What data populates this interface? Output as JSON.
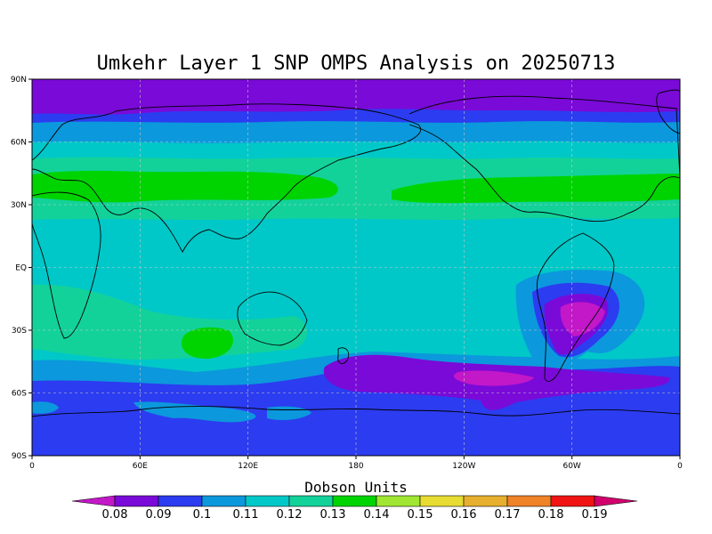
{
  "title": "Umkehr Layer 1 SNP OMPS Analysis on 20250713",
  "lat_axis": {
    "ticks": [
      {
        "label": "90N",
        "lat": 90
      },
      {
        "label": "60N",
        "lat": 60
      },
      {
        "label": "30N",
        "lat": 30
      },
      {
        "label": "EQ",
        "lat": 0
      },
      {
        "label": "30S",
        "lat": -30
      },
      {
        "label": "60S",
        "lat": -60
      },
      {
        "label": "90S",
        "lat": -90
      }
    ]
  },
  "lon_axis": {
    "ticks": [
      {
        "label": "0",
        "lon": 0
      },
      {
        "label": "60E",
        "lon": 60
      },
      {
        "label": "120E",
        "lon": 120
      },
      {
        "label": "180",
        "lon": 180
      },
      {
        "label": "120W",
        "lon": 240
      },
      {
        "label": "60W",
        "lon": 300
      },
      {
        "label": "0",
        "lon": 360
      }
    ]
  },
  "colorbar": {
    "title": "Dobson Units",
    "levels": [
      "0.08",
      "0.09",
      "0.1",
      "0.11",
      "0.12",
      "0.13",
      "0.14",
      "0.15",
      "0.16",
      "0.17",
      "0.18",
      "0.19"
    ],
    "colors": [
      "#c218c8",
      "#7a0ad8",
      "#2c3cf0",
      "#0c98dc",
      "#00c8c8",
      "#12d29a",
      "#00d400",
      "#a0e632",
      "#e6dc32",
      "#e6af2d",
      "#f08228",
      "#f01414",
      "#d2006e"
    ]
  },
  "background_color": "#2c3cf0",
  "grid": true,
  "colors": {
    "lvl_008": "#c218c8",
    "lvl_009": "#7a0ad8",
    "lvl_010": "#2c3cf0",
    "lvl_011": "#0c98dc",
    "lvl_012": "#00c8c8",
    "lvl_013": "#12d29a",
    "lvl_014": "#00d400"
  }
}
